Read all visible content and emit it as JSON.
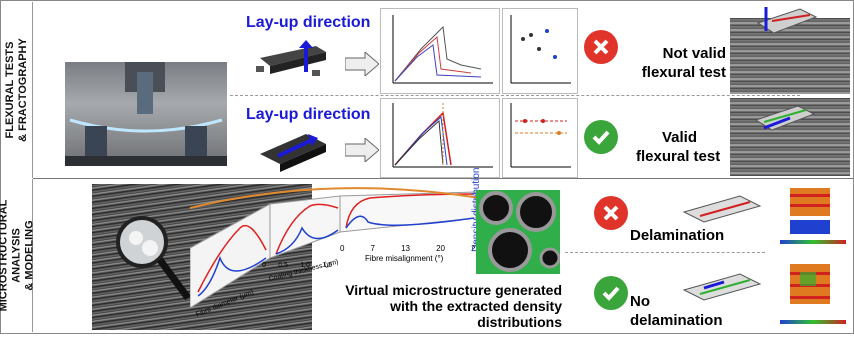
{
  "left_labels": {
    "top": "FLEXURAL TESTS\n& FRACTOGRAPHY",
    "bottom": "MICROSTRUCTURAL\nANALYSIS\n& MODELING"
  },
  "flexural": {
    "layup_label": "Lay-up direction",
    "not_valid": {
      "line1": "Not valid",
      "line2": "flexural test",
      "icon": "cross-icon"
    },
    "valid": {
      "line1": "Valid",
      "line2": "flexural test",
      "icon": "check-icon"
    }
  },
  "modeling": {
    "delamination": {
      "label": "Delamination",
      "icon": "cross-icon"
    },
    "no_delamination": {
      "line1": "No",
      "line2": "delamination",
      "icon": "check-icon"
    },
    "virtual_text": {
      "line1": "Virtual microstructure generated",
      "line2": "with the extracted density",
      "line3": "distributions"
    },
    "density_label": "Density distribution",
    "axis_labels": {
      "fibre_diameter": "Fibre diameter (μm)",
      "coating_thickness": "Coating thickness (μm)",
      "fibre_misalignment": "Fibre misalignment (°)"
    },
    "misalignment_ticks": [
      "0",
      "7",
      "13",
      "20",
      "27"
    ],
    "coating_ticks": [
      "0",
      "0.5",
      "1.0",
      "1.5"
    ]
  },
  "colors": {
    "cross_red": "#e0342b",
    "check_green": "#3aa53a",
    "arrow_blue": "#1a1ad8",
    "curve_red": "#e02020",
    "curve_blue": "#2040d0",
    "orange_arrow": "#e08a30"
  }
}
